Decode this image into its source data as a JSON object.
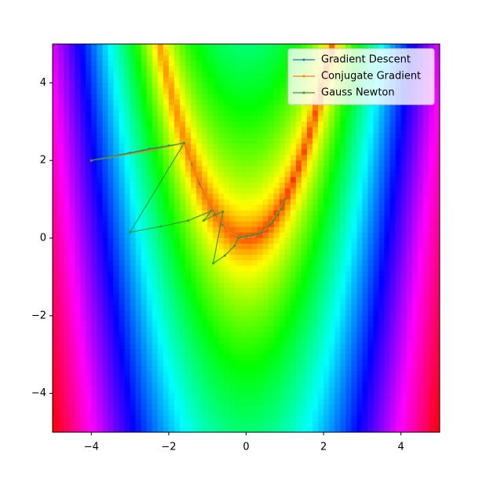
{
  "chart_data": {
    "type": "line",
    "xlim": [
      -5,
      5
    ],
    "ylim": [
      -5,
      5
    ],
    "xticks": [
      {
        "value": -4,
        "label": "−4"
      },
      {
        "value": -2,
        "label": "−2"
      },
      0,
      2,
      4
    ],
    "yticks": [
      {
        "value": -4,
        "label": "−4"
      },
      {
        "value": -2,
        "label": "−2"
      },
      0,
      2,
      4
    ],
    "legend": "upper right",
    "series": [
      {
        "name": "Gradient Descent",
        "color": "#1f77b4",
        "x": [
          -4,
          -3.5,
          -3,
          -2.5,
          -2,
          -1.6,
          -1.4,
          -1.2,
          -1,
          -0.8,
          -0.6,
          -0.4,
          -0.2,
          0,
          0.2,
          0.4,
          0.6,
          0.8,
          1
        ],
        "values": [
          2,
          2.1,
          2.2,
          2.3,
          2.38,
          2.45,
          1.9,
          1.4,
          1.0,
          0.62,
          0.35,
          0.16,
          0.05,
          0.01,
          0.04,
          0.15,
          0.35,
          0.63,
          1
        ]
      },
      {
        "name": "Conjugate Gradient",
        "color": "#ff7f0e",
        "x": [
          -4,
          -2.5,
          -1.6,
          -1.3,
          -1,
          -0.7,
          -0.4,
          -0.1,
          0.2,
          0.5,
          0.8,
          1
        ],
        "values": [
          2,
          2.25,
          2.45,
          1.65,
          1.0,
          0.48,
          0.15,
          0.0,
          0.03,
          0.24,
          0.64,
          1
        ]
      },
      {
        "name": "Gauss Newton",
        "color": "#2ca02c",
        "x": [
          -4,
          -1.6,
          -3,
          -2.2,
          -1.5,
          -0.9,
          -1.1,
          -0.8,
          -0.6,
          -0.85,
          -0.55,
          -0.3,
          -0.2,
          0,
          0.3,
          0.6,
          0.7,
          0.8,
          0.9,
          1
        ],
        "values": [
          2,
          2.45,
          0.15,
          0.3,
          0.45,
          0.7,
          0.45,
          0.6,
          0.68,
          -0.65,
          -0.45,
          -0.2,
          0,
          0.05,
          0.1,
          0.35,
          0.45,
          0.6,
          0.75,
          1
        ]
      }
    ]
  }
}
